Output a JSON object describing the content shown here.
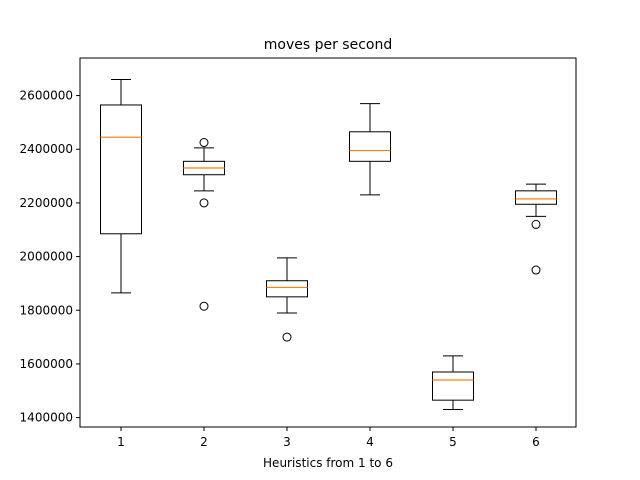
{
  "chart_data": {
    "type": "boxplot",
    "title": "moves per second",
    "xlabel": "Heuristics from 1 to 6",
    "ylabel": "",
    "ylim": [
      1365000,
      2740000
    ],
    "yticks": [
      1400000,
      1600000,
      1800000,
      2000000,
      2200000,
      2400000,
      2600000
    ],
    "ytick_labels": [
      "1400000",
      "1600000",
      "1800000",
      "2000000",
      "2200000",
      "2400000",
      "2600000"
    ],
    "categories": [
      "1",
      "2",
      "3",
      "4",
      "5",
      "6"
    ],
    "boxes": [
      {
        "label": "1",
        "whisker_low": 1865000,
        "q1": 2085000,
        "median": 2445000,
        "q3": 2565000,
        "whisker_high": 2660000,
        "outliers": []
      },
      {
        "label": "2",
        "whisker_low": 2245000,
        "q1": 2305000,
        "median": 2330000,
        "q3": 2355000,
        "whisker_high": 2405000,
        "outliers": [
          2425000,
          2200000,
          1815000
        ]
      },
      {
        "label": "3",
        "whisker_low": 1790000,
        "q1": 1850000,
        "median": 1885000,
        "q3": 1910000,
        "whisker_high": 1995000,
        "outliers": [
          1700000
        ]
      },
      {
        "label": "4",
        "whisker_low": 2230000,
        "q1": 2355000,
        "median": 2395000,
        "q3": 2465000,
        "whisker_high": 2570000,
        "outliers": []
      },
      {
        "label": "5",
        "whisker_low": 1430000,
        "q1": 1465000,
        "median": 1540000,
        "q3": 1570000,
        "whisker_high": 1630000,
        "outliers": []
      },
      {
        "label": "6",
        "whisker_low": 2150000,
        "q1": 2195000,
        "median": 2215000,
        "q3": 2245000,
        "whisker_high": 2270000,
        "outliers": [
          2120000,
          1950000
        ]
      }
    ],
    "colors": {
      "box": "#000000",
      "median": "#ff7f0e",
      "outlier_edge": "#000000"
    },
    "grid": false,
    "legend": "none"
  }
}
